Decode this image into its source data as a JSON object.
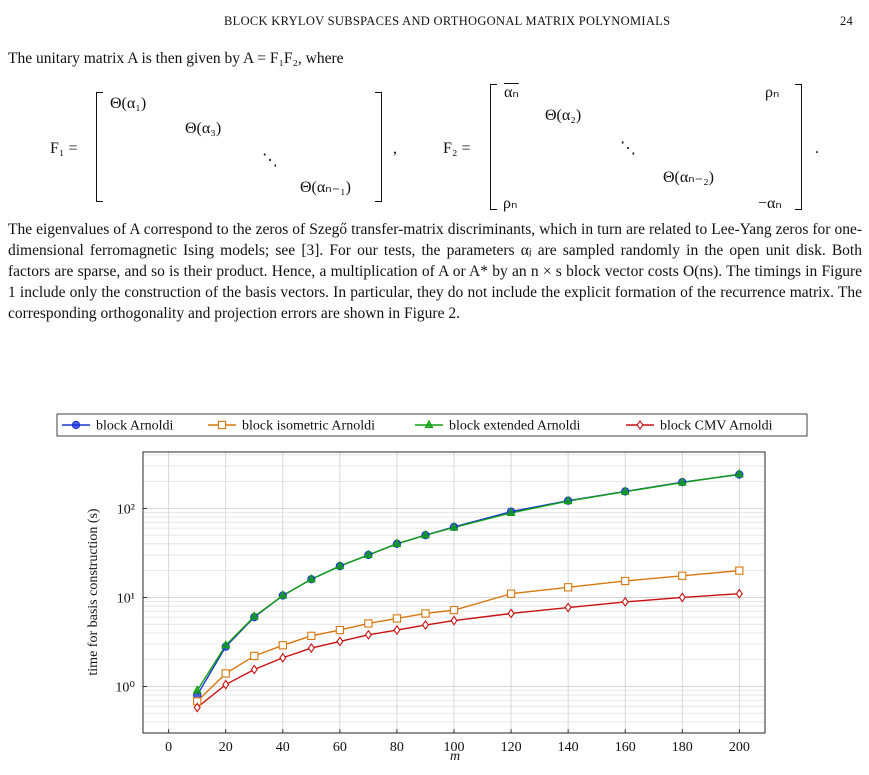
{
  "header": {
    "title": "BLOCK KRYLOV SUBSPACES AND ORTHOGONAL MATRIX POLYNOMIALS",
    "page": "24"
  },
  "intro": "The unitary matrix A is then given by A = F₁F₂, where",
  "matrices": [
    {
      "label": "F₁ =",
      "entries": [
        "Θ(α₁)",
        "Θ(α₃)",
        "⋱",
        "Θ(αₙ₋₁)"
      ],
      "after": ","
    },
    {
      "label": "F₂ =",
      "entries": [
        "αₙ",
        "ρₙ",
        "Θ(α₂)",
        "⋱",
        "Θ(αₙ₋₂)",
        "ρₙ",
        "−αₙ"
      ],
      "after": "."
    }
  ],
  "paragraph": "The eigenvalues of A correspond to the zeros of Szegő transfer-matrix discriminants, which in turn are related to Lee-Yang zeros for one-dimensional ferromagnetic Ising models; see [3]. For our tests, the parameters αⱼ are sampled randomly in the open unit disk. Both factors are sparse, and so is their product. Hence, a multiplication of A or A* by an n × s block vector costs O(ns). The timings in Figure 1 include only the construction of the basis vectors. In particular, they do not include the explicit formation of the recurrence matrix. The corresponding orthogonality and projection errors are shown in Figure 2.",
  "chart_data": {
    "type": "line",
    "x_label": "m",
    "y_label": "time for basis construction (s)",
    "x": [
      10,
      20,
      30,
      40,
      50,
      60,
      70,
      80,
      90,
      100,
      120,
      140,
      160,
      180,
      200
    ],
    "series": [
      {
        "name": "block Arnoldi",
        "color": "#1a33d9",
        "marker": "circle",
        "values": [
          0.8,
          2.8,
          6,
          10.5,
          16,
          22.5,
          30,
          40,
          50,
          62,
          92,
          122,
          155,
          197,
          240
        ]
      },
      {
        "name": "block isometric Arnoldi",
        "color": "#d9770f",
        "marker": "square",
        "values": [
          0.68,
          1.4,
          2.2,
          2.9,
          3.7,
          4.3,
          5.1,
          5.8,
          6.6,
          7.2,
          11,
          13,
          15.3,
          17.5,
          20
        ]
      },
      {
        "name": "block extended Arnoldi",
        "color": "#10a010",
        "marker": "triangle",
        "values": [
          0.9,
          2.9,
          6.1,
          10.5,
          16,
          22.5,
          30,
          40,
          50,
          61,
          89,
          121,
          154,
          195,
          242
        ]
      },
      {
        "name": "block CMV Arnoldi",
        "color": "#c81010",
        "marker": "diamond",
        "values": [
          0.58,
          1.05,
          1.55,
          2.1,
          2.7,
          3.2,
          3.8,
          4.3,
          4.9,
          5.5,
          6.6,
          7.7,
          8.9,
          10,
          11
        ]
      }
    ],
    "xlim": [
      -9,
      209
    ],
    "xticks": [
      0,
      20,
      40,
      60,
      80,
      100,
      120,
      140,
      160,
      180,
      200
    ],
    "ylim": [
      0.3,
      430
    ],
    "ylog": true,
    "yticks": [
      {
        "value": 1,
        "label": "10⁰"
      },
      {
        "value": 10,
        "label": "10¹"
      },
      {
        "value": 100,
        "label": "10²"
      }
    ],
    "yminor_ticks": [
      0.3,
      0.4,
      0.5,
      0.6,
      0.7,
      0.8,
      0.9,
      2,
      3,
      4,
      5,
      6,
      7,
      8,
      9,
      20,
      30,
      40,
      50,
      60,
      70,
      80,
      90,
      200,
      300,
      400
    ],
    "grid": true,
    "legend": "top"
  }
}
